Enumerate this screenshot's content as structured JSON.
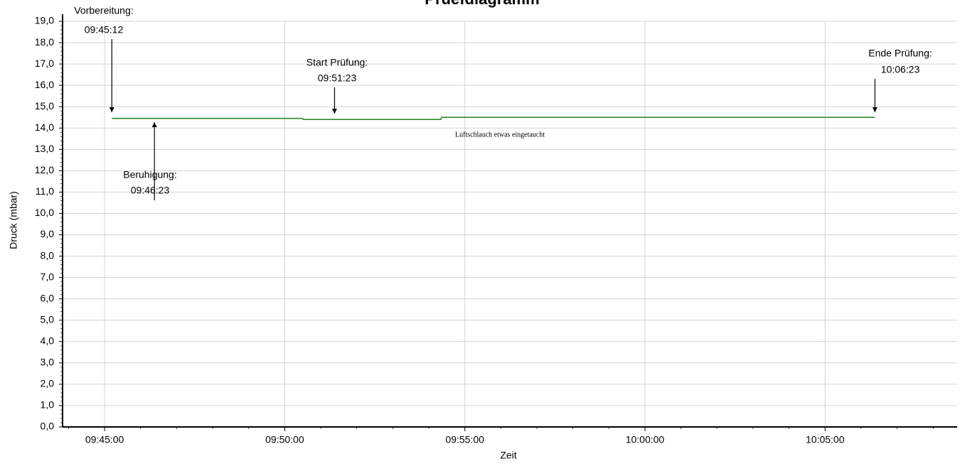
{
  "chart_data": {
    "type": "line",
    "title": "Pruefdiagramm",
    "xlabel": "Zeit",
    "ylabel": "Druck (mbar)",
    "x_ticks": [
      "09:45:00",
      "09:50:00",
      "09:55:00",
      "10:00:00",
      "10:05:00"
    ],
    "y_ticks": [
      "0,0",
      "1,0",
      "2,0",
      "3,0",
      "4,0",
      "5,0",
      "6,0",
      "7,0",
      "8,0",
      "9,0",
      "10,0",
      "11,0",
      "12,0",
      "13,0",
      "14,0",
      "15,0",
      "16,0",
      "17,0",
      "18,0",
      "19,0"
    ],
    "ylim": [
      0,
      19
    ],
    "xlim": [
      "09:43:50",
      "10:08:40"
    ],
    "grid": true,
    "line_color": "#2e8b2e",
    "series": [
      {
        "x": [
          "09:45:12",
          "09:50:30",
          "09:50:31",
          "09:54:20",
          "09:54:21",
          "10:06:23"
        ],
        "values": [
          14.45,
          14.45,
          14.4,
          14.4,
          14.5,
          14.5
        ]
      }
    ],
    "annotations": [
      {
        "label": "Vorbereitung:",
        "time": "09:45:12"
      },
      {
        "label": "Beruhigung:",
        "time": "09:46:23"
      },
      {
        "label": "Start Prüfung:",
        "time": "09:51:23"
      },
      {
        "label": "Ende Prüfung:",
        "time": "10:06:23"
      }
    ],
    "note": "Luftschlauch etwas eingetaucht"
  }
}
